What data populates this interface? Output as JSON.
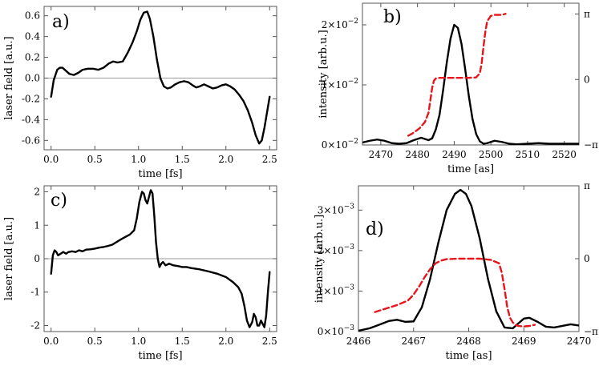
{
  "colors": {
    "main": "#000000",
    "phase": "#e8141b",
    "zero": "#9a9a9a",
    "frame": "#555555"
  },
  "chart_data": [
    {
      "id": "a",
      "type": "line",
      "panel_label": "a)",
      "xlabel": "time [fs]",
      "ylabel": "laser field [a.u.]",
      "xlim": [
        -0.08,
        2.58
      ],
      "ylim": [
        -0.69,
        0.69
      ],
      "xticks": [
        0.0,
        0.5,
        1.0,
        1.5,
        2.0,
        2.5
      ],
      "xtick_labels": [
        "0.0",
        "0.5",
        "1.0",
        "1.5",
        "2.0",
        "2.5"
      ],
      "yticks": [
        -0.6,
        -0.4,
        -0.2,
        0.0,
        0.2,
        0.4,
        0.6
      ],
      "ytick_labels": [
        "-0.6",
        "-0.4",
        "-0.2",
        "0.0",
        "0.2",
        "0.4",
        "0.6"
      ],
      "zero_line": true,
      "series": [
        {
          "name": "laser field",
          "x": [
            0.0,
            0.03,
            0.07,
            0.1,
            0.13,
            0.17,
            0.21,
            0.26,
            0.31,
            0.36,
            0.42,
            0.48,
            0.54,
            0.6,
            0.66,
            0.71,
            0.76,
            0.82,
            0.88,
            0.93,
            0.98,
            1.02,
            1.06,
            1.1,
            1.13,
            1.17,
            1.21,
            1.25,
            1.29,
            1.33,
            1.37,
            1.42,
            1.47,
            1.52,
            1.57,
            1.62,
            1.66,
            1.7,
            1.75,
            1.8,
            1.85,
            1.9,
            1.95,
            2.0,
            2.05,
            2.1,
            2.15,
            2.2,
            2.25,
            2.3,
            2.34,
            2.38,
            2.41,
            2.44,
            2.47,
            2.5
          ],
          "y": [
            -0.18,
            -0.02,
            0.08,
            0.1,
            0.1,
            0.07,
            0.04,
            0.03,
            0.05,
            0.08,
            0.09,
            0.09,
            0.08,
            0.1,
            0.14,
            0.16,
            0.15,
            0.16,
            0.25,
            0.34,
            0.45,
            0.56,
            0.63,
            0.64,
            0.57,
            0.4,
            0.18,
            0.0,
            -0.08,
            -0.1,
            -0.09,
            -0.06,
            -0.04,
            -0.03,
            -0.04,
            -0.07,
            -0.09,
            -0.08,
            -0.06,
            -0.08,
            -0.1,
            -0.09,
            -0.07,
            -0.06,
            -0.08,
            -0.11,
            -0.16,
            -0.22,
            -0.31,
            -0.43,
            -0.55,
            -0.63,
            -0.6,
            -0.48,
            -0.33,
            -0.18
          ]
        }
      ]
    },
    {
      "id": "b",
      "type": "line",
      "panel_label": "b)",
      "xlabel": "time [as]",
      "ylabel": "intensity [arb.u.]",
      "xlim": [
        2465,
        2524
      ],
      "ylim": [
        0,
        0.0236
      ],
      "xticks": [
        2470,
        2480,
        2490,
        2500,
        2510,
        2520
      ],
      "xtick_labels": [
        "2470",
        "2480",
        "2490",
        "2500",
        "2510",
        "2520"
      ],
      "yticks": [
        0,
        0.01,
        0.02
      ],
      "ytick_labels": [
        "0×10",
        "1×10",
        "2×10"
      ],
      "ytick_exponents": [
        "−2",
        "−2",
        "−2"
      ],
      "right_ylim": [
        -3.1416,
        3.66
      ],
      "right_yticks": [
        -3.1416,
        0,
        3.1416
      ],
      "right_ytick_labels": [
        "−π",
        "0",
        "π"
      ],
      "series": [
        {
          "name": "intensity",
          "axis": "left",
          "x": [
            2465,
            2467,
            2469,
            2471,
            2473,
            2475,
            2477,
            2479,
            2481,
            2483,
            2484,
            2485,
            2486,
            2487,
            2488,
            2489,
            2490,
            2491,
            2492,
            2493,
            2494,
            2495,
            2496,
            2497,
            2498,
            2499,
            2501,
            2503,
            2505,
            2507,
            2510,
            2513,
            2516,
            2519,
            2522,
            2524
          ],
          "y": [
            0.0004,
            0.0007,
            0.0009,
            0.0007,
            0.0003,
            0.0002,
            0.0003,
            0.0008,
            0.0012,
            0.0008,
            0.0011,
            0.0026,
            0.005,
            0.0092,
            0.0138,
            0.0177,
            0.02,
            0.0195,
            0.0168,
            0.0126,
            0.0081,
            0.0043,
            0.0018,
            0.0006,
            0.0002,
            0.0003,
            0.0007,
            0.0005,
            0.0002,
            0.0001,
            0.0002,
            0.0003,
            0.0002,
            0.0002,
            0.0002,
            0.0002
          ]
        },
        {
          "name": "phase",
          "axis": "right",
          "x": [
            2477.5,
            2479,
            2480.5,
            2482,
            2483,
            2483.5,
            2484,
            2484.5,
            2485,
            2486,
            2488,
            2490,
            2492,
            2494,
            2496,
            2497,
            2497.5,
            2498,
            2498.5,
            2499,
            2500,
            2501,
            2502,
            2503,
            2504
          ],
          "y": [
            -2.7,
            -2.55,
            -2.35,
            -2.05,
            -1.6,
            -1.0,
            -0.4,
            -0.05,
            0.05,
            0.08,
            0.08,
            0.08,
            0.08,
            0.08,
            0.1,
            0.3,
            0.8,
            1.6,
            2.3,
            2.8,
            3.05,
            3.1,
            3.1,
            3.1,
            3.15
          ]
        }
      ]
    },
    {
      "id": "c",
      "type": "line",
      "panel_label": "c)",
      "xlabel": "time [fs]",
      "ylabel": "laser field [a.u.]",
      "xlim": [
        -0.08,
        2.58
      ],
      "ylim": [
        -2.18,
        2.18
      ],
      "xticks": [
        0.0,
        0.5,
        1.0,
        1.5,
        2.0,
        2.5
      ],
      "xtick_labels": [
        "0.0",
        "0.5",
        "1.0",
        "1.5",
        "2.0",
        "2.5"
      ],
      "yticks": [
        -2,
        -1,
        0,
        1,
        2
      ],
      "ytick_labels": [
        "-2",
        "-1",
        "0",
        "1",
        "2"
      ],
      "zero_line": true,
      "series": [
        {
          "name": "laser field",
          "x": [
            0.0,
            0.02,
            0.04,
            0.06,
            0.08,
            0.11,
            0.14,
            0.17,
            0.2,
            0.24,
            0.28,
            0.32,
            0.36,
            0.4,
            0.45,
            0.5,
            0.55,
            0.6,
            0.65,
            0.7,
            0.75,
            0.8,
            0.85,
            0.9,
            0.95,
            0.98,
            1.01,
            1.04,
            1.06,
            1.08,
            1.1,
            1.12,
            1.14,
            1.16,
            1.18,
            1.2,
            1.22,
            1.24,
            1.26,
            1.28,
            1.31,
            1.35,
            1.4,
            1.45,
            1.5,
            1.55,
            1.6,
            1.7,
            1.8,
            1.9,
            2.0,
            2.08,
            2.14,
            2.18,
            2.21,
            2.24,
            2.27,
            2.3,
            2.32,
            2.34,
            2.36,
            2.38,
            2.4,
            2.42,
            2.44,
            2.46,
            2.48,
            2.5
          ],
          "y": [
            -0.45,
            0.1,
            0.25,
            0.2,
            0.1,
            0.15,
            0.2,
            0.15,
            0.2,
            0.22,
            0.2,
            0.25,
            0.22,
            0.27,
            0.28,
            0.3,
            0.33,
            0.35,
            0.38,
            0.42,
            0.5,
            0.58,
            0.65,
            0.72,
            0.85,
            1.2,
            1.7,
            2.0,
            1.95,
            1.75,
            1.65,
            1.85,
            2.05,
            1.95,
            1.3,
            0.5,
            0.0,
            -0.25,
            -0.15,
            -0.1,
            -0.2,
            -0.15,
            -0.2,
            -0.22,
            -0.25,
            -0.25,
            -0.28,
            -0.32,
            -0.38,
            -0.45,
            -0.55,
            -0.7,
            -0.85,
            -1.05,
            -1.4,
            -1.85,
            -2.05,
            -1.9,
            -1.65,
            -1.75,
            -2.0,
            -2.0,
            -1.85,
            -1.95,
            -2.05,
            -1.7,
            -1.0,
            -0.4
          ]
        }
      ]
    },
    {
      "id": "d",
      "type": "line",
      "panel_label": "d)",
      "xlabel": "time [as]",
      "ylabel": "intensity [arb.u.]",
      "xlim": [
        2466,
        2470
      ],
      "ylim": [
        0,
        0.0036
      ],
      "xticks": [
        2466,
        2467,
        2468,
        2469,
        2470
      ],
      "xtick_labels": [
        "2466",
        "2467",
        "2468",
        "2469",
        "2470"
      ],
      "yticks": [
        0,
        0.001,
        0.002,
        0.003
      ],
      "ytick_labels": [
        "0×10",
        "1×10",
        "2×10",
        "3×10"
      ],
      "ytick_exponents": [
        "−3",
        "−3",
        "−3",
        "−3"
      ],
      "right_ylim": [
        -3.1416,
        3.1416
      ],
      "right_yticks": [
        -3.1416,
        0,
        3.1416
      ],
      "right_ytick_labels": [
        "−π",
        "0",
        "π"
      ],
      "series": [
        {
          "name": "intensity",
          "axis": "left",
          "x": [
            2466.0,
            2466.2,
            2466.4,
            2466.55,
            2466.7,
            2466.85,
            2467.0,
            2467.15,
            2467.3,
            2467.45,
            2467.6,
            2467.75,
            2467.85,
            2467.95,
            2468.05,
            2468.2,
            2468.35,
            2468.5,
            2468.65,
            2468.8,
            2468.9,
            2469.0,
            2469.1,
            2469.25,
            2469.4,
            2469.55,
            2469.7,
            2469.85,
            2470.0
          ],
          "y": [
            2e-05,
            8e-05,
            0.00018,
            0.00026,
            0.00029,
            0.00024,
            0.00025,
            0.0006,
            0.0013,
            0.0022,
            0.003,
            0.0034,
            0.0035,
            0.0034,
            0.0031,
            0.0023,
            0.0013,
            0.0005,
            0.0001,
            8e-05,
            0.0002,
            0.00032,
            0.00034,
            0.00024,
            0.00012,
            0.0001,
            0.00014,
            0.00018,
            0.00015
          ]
        },
        {
          "name": "phase",
          "axis": "right",
          "x": [
            2466.3,
            2466.5,
            2466.7,
            2466.9,
            2467.0,
            2467.1,
            2467.2,
            2467.3,
            2467.4,
            2467.5,
            2467.6,
            2467.8,
            2468.0,
            2468.2,
            2468.4,
            2468.55,
            2468.6,
            2468.65,
            2468.7,
            2468.75,
            2468.8,
            2468.85,
            2468.9,
            2469.0,
            2469.1,
            2469.2
          ],
          "y": [
            -2.3,
            -2.15,
            -2.0,
            -1.8,
            -1.55,
            -1.2,
            -0.8,
            -0.45,
            -0.2,
            -0.08,
            -0.02,
            0.0,
            0.0,
            0.0,
            -0.05,
            -0.2,
            -0.6,
            -1.3,
            -2.1,
            -2.55,
            -2.75,
            -2.85,
            -2.9,
            -2.92,
            -2.9,
            -2.85
          ]
        }
      ]
    }
  ]
}
